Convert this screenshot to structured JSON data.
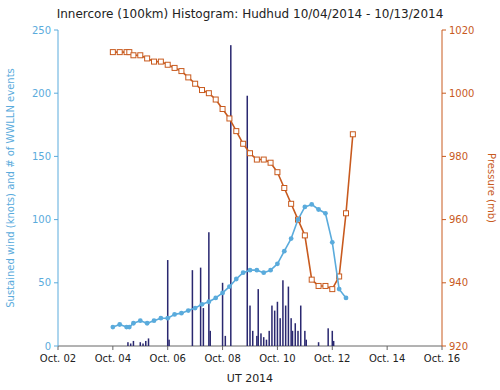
{
  "chart_data": {
    "type": "bar",
    "title": "Innercore (100km) Histogram: Hudhud 10/04/2014 - 10/13/2014",
    "xlabel": "UT 2014",
    "ylabel": "Sustained wind (knots) and # of WWLLN events",
    "y2label": "Pressure (mb)",
    "xlim": [
      2,
      16
    ],
    "xticks": [
      {
        "value": 2,
        "label": "Oct. 02"
      },
      {
        "value": 4,
        "label": "Oct. 04"
      },
      {
        "value": 6,
        "label": "Oct. 06"
      },
      {
        "value": 8,
        "label": "Oct. 08"
      },
      {
        "value": 10,
        "label": "Oct. 10"
      },
      {
        "value": 12,
        "label": "Oct. 12"
      },
      {
        "value": 14,
        "label": "Oct. 14"
      },
      {
        "value": 16,
        "label": "Oct. 16"
      }
    ],
    "ylim": [
      0,
      250
    ],
    "yticks": [
      0,
      50,
      100,
      150,
      200,
      250
    ],
    "y2lim": [
      920,
      1020
    ],
    "y2ticks": [
      920,
      940,
      960,
      980,
      1000,
      1020
    ],
    "series": [
      {
        "type": "bar",
        "color": "#2a2870",
        "x": [
          4.55,
          4.65,
          4.75,
          5.0,
          5.1,
          5.2,
          5.3,
          6.0,
          6.05,
          6.9,
          7.2,
          7.3,
          7.5,
          7.55,
          8.0,
          8.1,
          8.3,
          8.9,
          9.0,
          9.1,
          9.25,
          9.3,
          9.4,
          9.5,
          9.6,
          9.7,
          9.8,
          9.9,
          10.0,
          10.1,
          10.2,
          10.3,
          10.4,
          10.5,
          10.55,
          10.65,
          10.75,
          10.85,
          11.0,
          11.05,
          11.5,
          11.85,
          12.0,
          12.05
        ],
        "values": [
          3,
          2,
          4,
          3,
          2,
          4,
          6,
          68,
          5,
          60,
          62,
          30,
          90,
          12,
          50,
          8,
          238,
          198,
          32,
          12,
          8,
          45,
          10,
          7,
          5,
          12,
          32,
          28,
          35,
          22,
          52,
          32,
          47,
          22,
          12,
          18,
          12,
          32,
          12,
          5,
          3,
          14,
          12,
          4
        ]
      },
      {
        "type": "line",
        "color": "#5aabdc",
        "marker": "circle",
        "x": [
          4.0,
          4.25,
          4.5,
          4.6,
          4.75,
          5.0,
          5.25,
          5.5,
          5.75,
          6.0,
          6.25,
          6.5,
          6.75,
          7.0,
          7.25,
          7.5,
          7.75,
          8.0,
          8.25,
          8.5,
          8.75,
          9.0,
          9.25,
          9.5,
          9.75,
          10.0,
          10.25,
          10.5,
          10.75,
          11.0,
          11.25,
          11.5,
          11.75,
          12.0,
          12.25,
          12.5
        ],
        "values": [
          15,
          17,
          15,
          15,
          18,
          20,
          18,
          20,
          22,
          22,
          25,
          26,
          28,
          30,
          33,
          35,
          38,
          42,
          47,
          53,
          58,
          60,
          60,
          58,
          60,
          65,
          75,
          85,
          100,
          110,
          112,
          108,
          105,
          82,
          45,
          38
        ]
      },
      {
        "type": "line",
        "color": "#c85a1e",
        "marker": "square",
        "axis": "y2",
        "x": [
          4.0,
          4.25,
          4.5,
          4.6,
          4.75,
          5.0,
          5.25,
          5.5,
          5.75,
          6.0,
          6.25,
          6.5,
          6.75,
          7.0,
          7.25,
          7.5,
          7.75,
          8.0,
          8.25,
          8.5,
          8.75,
          9.0,
          9.25,
          9.5,
          9.75,
          10.0,
          10.25,
          10.5,
          10.75,
          11.0,
          11.25,
          11.5,
          11.75,
          12.0,
          12.25,
          12.5,
          12.75
        ],
        "values": [
          1013,
          1013,
          1013,
          1013,
          1012,
          1012,
          1011,
          1010,
          1010,
          1009,
          1008,
          1007,
          1005,
          1003,
          1001,
          1000,
          998,
          995,
          992,
          988,
          984,
          981,
          979,
          979,
          978,
          975,
          970,
          965,
          960,
          955,
          941,
          939,
          939,
          938,
          942,
          962,
          987
        ]
      }
    ]
  }
}
